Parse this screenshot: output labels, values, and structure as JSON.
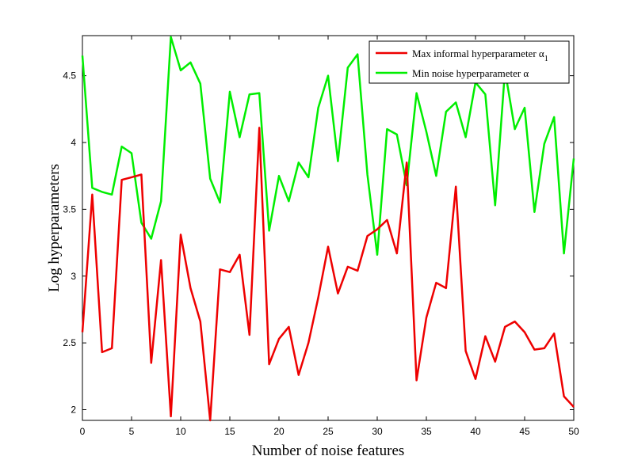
{
  "chart_data": {
    "type": "line",
    "title": "",
    "xlabel": "Number of noise features",
    "ylabel": "Log hyperparameters",
    "xlim": [
      0,
      50
    ],
    "ylim": [
      1.92,
      4.8
    ],
    "xticks": [
      0,
      5,
      10,
      15,
      20,
      25,
      30,
      35,
      40,
      45,
      50
    ],
    "yticks": [
      2,
      2.5,
      3,
      3.5,
      4,
      4.5
    ],
    "ytick_labels": [
      "2",
      "2.5",
      "3",
      "3.5",
      "4",
      "4.5"
    ],
    "grid": false,
    "legend_position": "top-right",
    "x": [
      0,
      1,
      2,
      3,
      4,
      5,
      6,
      7,
      8,
      9,
      10,
      11,
      12,
      13,
      14,
      15,
      16,
      17,
      18,
      19,
      20,
      21,
      22,
      23,
      24,
      25,
      26,
      27,
      28,
      29,
      30,
      31,
      32,
      33,
      34,
      35,
      36,
      37,
      38,
      39,
      40,
      41,
      42,
      43,
      44,
      45,
      46,
      47,
      48,
      49,
      50
    ],
    "series": [
      {
        "name": "Max informal hyperparameter α",
        "name_subscript": "1",
        "color": "#ee0000",
        "values": [
          2.58,
          3.61,
          2.43,
          2.46,
          3.72,
          3.74,
          3.76,
          2.35,
          3.12,
          1.95,
          3.31,
          2.91,
          2.66,
          1.92,
          3.05,
          3.03,
          3.16,
          2.56,
          4.11,
          2.34,
          2.53,
          2.62,
          2.26,
          2.5,
          2.84,
          3.22,
          2.87,
          3.07,
          3.04,
          3.3,
          3.35,
          3.42,
          3.17,
          3.85,
          2.22,
          2.69,
          2.95,
          2.91,
          3.67,
          2.44,
          2.23,
          2.55,
          2.36,
          2.62,
          2.66,
          2.58,
          2.45,
          2.46,
          2.57,
          2.1,
          2.02
        ]
      },
      {
        "name": "Min noise hyperparameter α",
        "color": "#00ee00",
        "values": [
          4.65,
          3.66,
          3.63,
          3.61,
          3.97,
          3.92,
          3.4,
          3.28,
          3.56,
          4.79,
          4.54,
          4.6,
          4.44,
          3.73,
          3.55,
          4.38,
          4.04,
          4.36,
          4.37,
          3.34,
          3.75,
          3.56,
          3.85,
          3.74,
          4.26,
          4.5,
          3.86,
          4.56,
          4.66,
          3.76,
          3.16,
          4.1,
          4.06,
          3.68,
          4.37,
          4.08,
          3.75,
          4.23,
          4.3,
          4.04,
          4.45,
          4.36,
          3.53,
          4.54,
          4.1,
          4.26,
          3.48,
          3.99,
          4.19,
          3.17,
          3.88
        ]
      }
    ]
  }
}
